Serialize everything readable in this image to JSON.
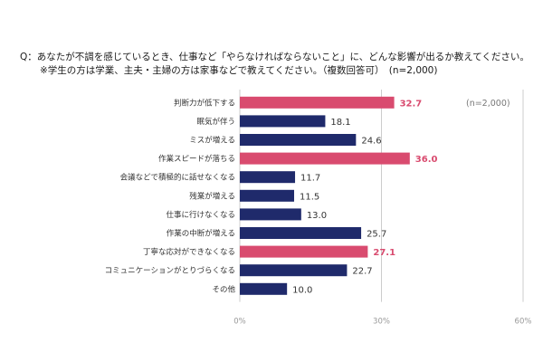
{
  "question": {
    "line1": "Q：あなたが不調を感じているとき、仕事など「やらなければならないこと」に、どんな影響が出るか教えてください。",
    "line2": "※学生の方は学業、主夫・主婦の方は家事などで教えてください。（複数回答可）　(n=2,000)"
  },
  "chart_data": {
    "type": "bar",
    "orientation": "horizontal",
    "categories": [
      "判断力が低下する",
      "眠気が伴う",
      "ミスが増える",
      "作業スピードが落ちる",
      "会議などで積極的に話せなくなる",
      "残業が増える",
      "仕事に行けなくなる",
      "作業の中断が増える",
      "丁寧な応対ができなくなる",
      "コミュニケーションがとりづらくなる",
      "その他"
    ],
    "values": [
      32.7,
      18.1,
      24.6,
      36.0,
      11.7,
      11.5,
      13.0,
      25.7,
      27.1,
      22.7,
      10.0
    ],
    "value_labels": [
      "32.7",
      "18.1",
      "24.6",
      "36.0",
      "11.7",
      "11.5",
      "13.0",
      "25.7",
      "27.1",
      "22.7",
      "10.0"
    ],
    "highlighted": [
      true,
      false,
      false,
      true,
      false,
      false,
      false,
      false,
      true,
      false,
      false
    ],
    "xlim": [
      0,
      60
    ],
    "xticks": [
      "0%",
      "30%",
      "60%"
    ],
    "xtick_values": [
      0,
      30,
      60
    ],
    "grid": true,
    "note": "(n=2,000)",
    "colors": {
      "normal": "#1f2a6b",
      "highlight": "#d94b6f",
      "grid": "#cccccc"
    }
  }
}
